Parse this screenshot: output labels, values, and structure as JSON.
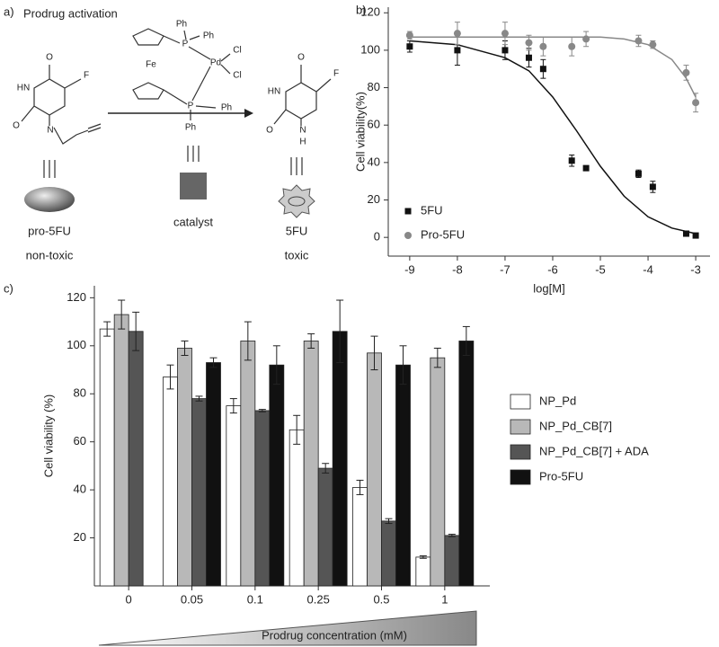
{
  "scheme": {
    "label": "a)",
    "title": "Prodrug activation",
    "reactant": {
      "atoms": [
        "O",
        "HN",
        "F",
        "O",
        "N"
      ],
      "name": "pro-5FU",
      "note": "non-toxic"
    },
    "catalyst": {
      "atoms": [
        "Ph",
        "Ph",
        "P",
        "Cl",
        "Fe",
        "Pd",
        "Cl",
        "P",
        "Ph",
        "Ph"
      ],
      "name": "catalyst"
    },
    "product": {
      "atoms": [
        "O",
        "HN",
        "F",
        "O",
        "N",
        "H"
      ],
      "name": "5FU",
      "note": "toxic"
    }
  },
  "chart_data": [
    {
      "type": "scatter",
      "panel_label": "b)",
      "x_label": "log[M]",
      "y_label": "Cell viability(%)",
      "xlim": [
        -9.45,
        -2.7
      ],
      "xticks": [
        -9,
        -8,
        -7,
        -6,
        -5,
        -4,
        -3
      ],
      "ylim": [
        -10,
        123
      ],
      "yticks": [
        0,
        20,
        40,
        60,
        80,
        100,
        120
      ],
      "legend": "lower left",
      "series": [
        {
          "name": "5FU",
          "color": "#111111",
          "marker": "square",
          "x": [
            -9,
            -8,
            -7,
            -6.5,
            -6.2,
            -5.6,
            -5.3,
            -4.2,
            -3.9,
            -3.2,
            -3
          ],
          "values": [
            102,
            100,
            100,
            96,
            90,
            41,
            37,
            34,
            27,
            2,
            1
          ],
          "errors": [
            3,
            8,
            5,
            5,
            5,
            3,
            1,
            2,
            3,
            1,
            1
          ],
          "fit": {
            "x": [
              -9,
              -8,
              -7,
              -6.5,
              -6,
              -5.5,
              -5,
              -4.5,
              -4,
              -3.5,
              -3
            ],
            "values": [
              105,
              103,
              96,
              89,
              75,
              57,
              38,
              22,
              11,
              5,
              2
            ]
          }
        },
        {
          "name": "Pro-5FU",
          "color": "#888888",
          "marker": "circle",
          "x": [
            -9,
            -8,
            -7,
            -6.5,
            -6.2,
            -5.6,
            -5.3,
            -4.2,
            -3.9,
            -3.2,
            -3
          ],
          "values": [
            108,
            109,
            109,
            104,
            102,
            102,
            106,
            105,
            103,
            88,
            72
          ],
          "errors": [
            2,
            6,
            6,
            4,
            5,
            5,
            4,
            3,
            2,
            4,
            5
          ],
          "fit": {
            "x": [
              -9,
              -8,
              -7,
              -6,
              -5,
              -4.5,
              -4,
              -3.5,
              -3.2,
              -3
            ],
            "values": [
              107,
              107,
              107,
              107,
              107,
              106,
              103,
              95,
              85,
              75
            ]
          }
        }
      ]
    },
    {
      "type": "bar",
      "panel_label": "c)",
      "x_label": "Prodrug concentration (mM)",
      "y_label": "Cell viability (%)",
      "categories": [
        "0",
        "0.05",
        "0.1",
        "0.25",
        "0.5",
        "1"
      ],
      "ylim": [
        0,
        125
      ],
      "yticks": [
        20,
        40,
        60,
        80,
        100,
        120
      ],
      "legend": "right",
      "series": [
        {
          "name": "NP_Pd",
          "color": "#ffffff",
          "values": [
            107,
            87,
            75,
            65,
            41,
            12
          ],
          "errors": [
            3,
            5,
            3,
            6,
            3,
            0.5
          ]
        },
        {
          "name": "NP_Pd_CB[7]",
          "color": "#b8b8b8",
          "values": [
            113,
            99,
            102,
            102,
            97,
            95
          ],
          "errors": [
            6,
            3,
            8,
            3,
            7,
            4
          ]
        },
        {
          "name": "NP_Pd_CB[7] + ADA",
          "color": "#555555",
          "values": [
            106,
            78,
            73,
            49,
            27,
            21
          ],
          "errors": [
            8,
            1,
            0.5,
            2,
            1,
            0.5
          ]
        },
        {
          "name": "Pro-5FU",
          "color": "#111111",
          "values": [
            null,
            93,
            92,
            106,
            92,
            102
          ],
          "errors": [
            null,
            2,
            8,
            13,
            8,
            6
          ]
        }
      ]
    }
  ]
}
